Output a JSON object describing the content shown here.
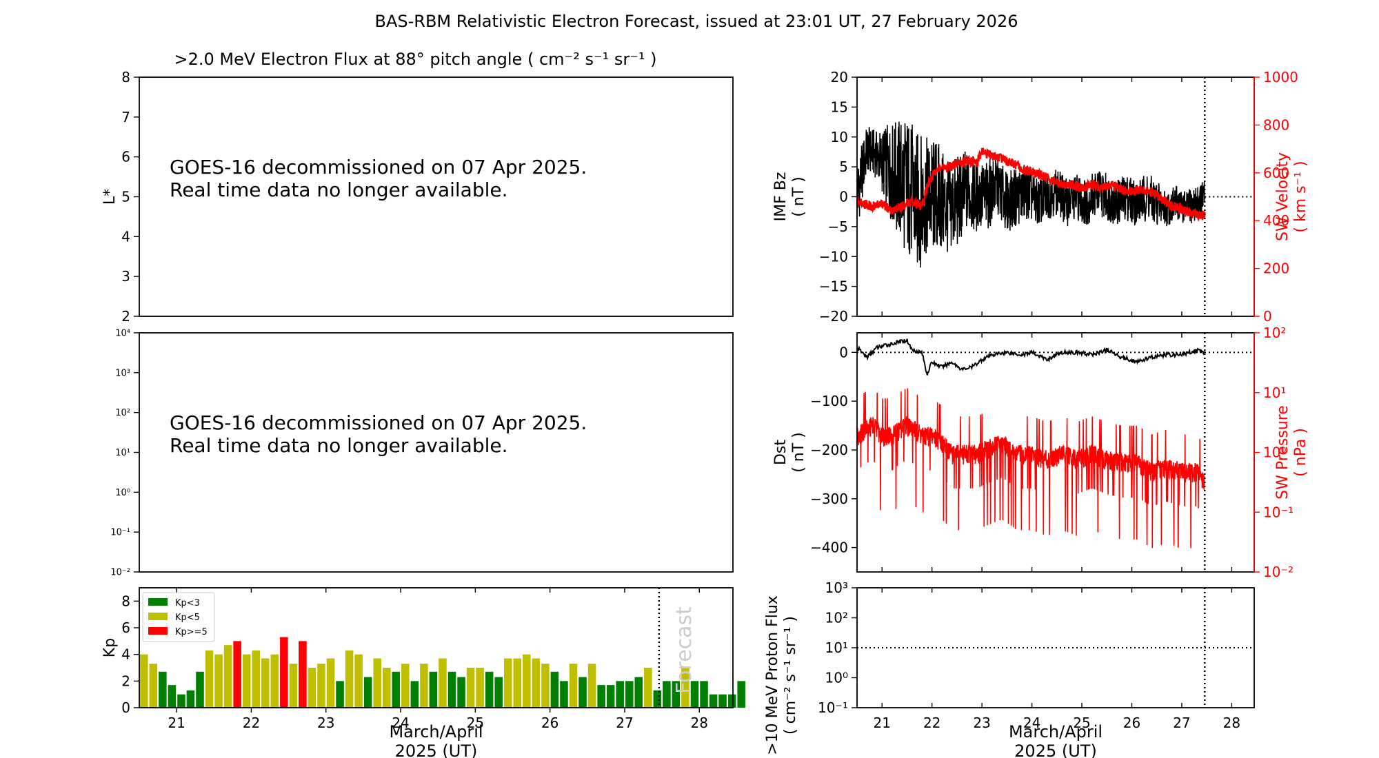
{
  "suptitle": "BAS-RBM Relativistic Electron Forecast, issued at 23:01 UT, 27 February 2026",
  "chart_data": [
    {
      "id": "flux_lstar",
      "type": "heatmap",
      "title": ">2.0 MeV Electron Flux at 88° pitch angle ( cm⁻² s⁻¹ sr⁻¹ )",
      "ylabel": "L*",
      "ylim": [
        2,
        8
      ],
      "yticks": [
        "2",
        "3",
        "4",
        "5",
        "6",
        "7",
        "8"
      ],
      "notice": [
        "GOES-16 decommissioned on 07 Apr 2025.",
        "Real time data no longer available."
      ]
    },
    {
      "id": "flux_goes",
      "type": "line",
      "yscale": "log",
      "yticks": [
        "10⁻²",
        "10⁻¹",
        "10⁰",
        "10¹",
        "10²",
        "10³",
        "10⁴"
      ],
      "notice": [
        "GOES-16 decommissioned on 07 Apr 2025.",
        "Real time data no longer available."
      ]
    },
    {
      "id": "kp",
      "type": "bar",
      "ylabel": "Kp",
      "ylim": [
        0,
        9
      ],
      "yticks": [
        "0",
        "2",
        "4",
        "6",
        "8"
      ],
      "xticks": [
        "21",
        "22",
        "23",
        "24",
        "25",
        "26",
        "27",
        "28"
      ],
      "xlabel": [
        "March/April",
        "2025 (UT)"
      ],
      "x_start": 20.5,
      "x_end": 28.45,
      "bin_days": 0.125,
      "forecast_x": 27.46,
      "forecast_label": "Forecast",
      "legend": [
        {
          "label": "Kp<3",
          "color": "#008000"
        },
        {
          "label": "Kp<5",
          "color": "#bfbf00"
        },
        {
          "label": "Kp>=5",
          "color": "#ff0000"
        }
      ],
      "values": [
        4.0,
        3.3,
        2.7,
        1.7,
        1.0,
        1.3,
        2.7,
        4.3,
        4.0,
        4.7,
        5.0,
        4.0,
        4.3,
        3.7,
        4.0,
        5.3,
        3.3,
        5.0,
        3.0,
        3.3,
        3.7,
        2.0,
        4.3,
        4.0,
        2.3,
        3.7,
        3.0,
        2.7,
        3.3,
        2.0,
        3.3,
        2.7,
        3.7,
        2.7,
        2.3,
        3.0,
        3.0,
        2.7,
        2.3,
        3.7,
        3.7,
        4.0,
        3.7,
        3.3,
        2.7,
        2.0,
        3.3,
        2.3,
        3.3,
        1.7,
        1.7,
        2.0,
        2.0,
        2.3,
        3.0,
        1.3,
        2.0,
        2.0,
        3.0,
        2.0,
        2.0,
        1.0,
        1.0,
        1.0,
        2.0
      ]
    },
    {
      "id": "imf_sw",
      "type": "line",
      "ylabel": [
        "IMF Bz",
        "( nT )"
      ],
      "ylim": [
        -20,
        20
      ],
      "yticks": [
        "−20",
        "−15",
        "−10",
        "−5",
        "0",
        "5",
        "10",
        "15",
        "20"
      ],
      "y2label": [
        "SW Velocity",
        "( km s⁻¹ )"
      ],
      "y2lim": [
        0,
        1000
      ],
      "y2ticks": [
        "0",
        "200",
        "400",
        "600",
        "800",
        "1000"
      ],
      "xlim": [
        20.5,
        28.45
      ],
      "now_x": 27.46,
      "series": [
        {
          "name": "IMF Bz",
          "color": "#000000",
          "x": [
            20.5,
            20.7,
            20.9,
            21.1,
            21.3,
            21.5,
            21.7,
            21.9,
            22.1,
            22.3,
            22.5,
            22.7,
            22.9,
            23.1,
            23.3,
            23.5,
            23.7,
            23.9,
            24.1,
            24.3,
            24.5,
            24.7,
            24.9,
            25.1,
            25.3,
            25.5,
            25.7,
            25.9,
            26.1,
            26.3,
            26.5,
            26.7,
            26.9,
            27.1,
            27.3,
            27.46
          ],
          "values": [
            0,
            8,
            7,
            5,
            3,
            2,
            -1,
            0,
            0,
            -2,
            -1,
            1,
            0,
            0,
            2,
            -1,
            0,
            1,
            -1,
            0,
            1,
            -1,
            0,
            -1,
            1,
            0,
            -1,
            0,
            -1,
            0,
            -1,
            -2,
            -1,
            -2,
            -1,
            0
          ],
          "spread": [
            6,
            4,
            4,
            7,
            10,
            12,
            12,
            10,
            10,
            8,
            8,
            7,
            6,
            6,
            5,
            5,
            5,
            5,
            4,
            4,
            4,
            4,
            4,
            4,
            4,
            4,
            4,
            4,
            4,
            4,
            4,
            3,
            3,
            3,
            3,
            3
          ]
        },
        {
          "name": "SW Velocity",
          "color": "#ff0000",
          "axis": "right",
          "x": [
            20.5,
            20.8,
            21.0,
            21.2,
            21.4,
            21.6,
            21.8,
            21.9,
            22.1,
            22.3,
            22.5,
            22.7,
            22.9,
            23.0,
            23.2,
            23.4,
            23.6,
            23.8,
            24.0,
            24.2,
            24.4,
            24.6,
            24.8,
            25.0,
            25.2,
            25.4,
            25.6,
            25.8,
            26.0,
            26.2,
            26.4,
            26.6,
            26.8,
            27.0,
            27.2,
            27.46
          ],
          "values": [
            480,
            460,
            470,
            440,
            460,
            480,
            460,
            540,
            620,
            620,
            640,
            650,
            640,
            690,
            670,
            660,
            640,
            620,
            600,
            590,
            570,
            550,
            550,
            540,
            550,
            540,
            550,
            530,
            520,
            530,
            520,
            490,
            460,
            450,
            430,
            420
          ]
        }
      ]
    },
    {
      "id": "dst_pressure",
      "type": "line",
      "ylabel": [
        "Dst",
        "( nT )"
      ],
      "ylim": [
        -450,
        40
      ],
      "yticks": [
        "−400",
        "−300",
        "−200",
        "−100",
        "0"
      ],
      "y2label": [
        "SW Pressure",
        "( nPa )"
      ],
      "y2scale": "log",
      "y2lim": [
        0.01,
        100
      ],
      "y2ticks": [
        "10⁻²",
        "10⁻¹",
        "10⁰",
        "10¹",
        "10²"
      ],
      "xlim": [
        20.5,
        28.45
      ],
      "now_x": 27.46,
      "series": [
        {
          "name": "Dst",
          "color": "#000000",
          "x": [
            20.5,
            20.7,
            20.9,
            21.1,
            21.3,
            21.5,
            21.6,
            21.8,
            21.9,
            22.0,
            22.2,
            22.4,
            22.6,
            22.8,
            23.0,
            23.2,
            23.5,
            23.8,
            24.0,
            24.3,
            24.6,
            24.9,
            25.2,
            25.5,
            25.8,
            26.1,
            26.4,
            26.7,
            27.0,
            27.3,
            27.46
          ],
          "values": [
            10,
            -10,
            10,
            15,
            20,
            25,
            5,
            0,
            -45,
            -20,
            -30,
            -20,
            -35,
            -30,
            -15,
            -5,
            0,
            -5,
            0,
            -15,
            0,
            0,
            -5,
            5,
            -10,
            -20,
            -10,
            -5,
            -5,
            5,
            0
          ]
        },
        {
          "name": "SW Pressure",
          "color": "#ff0000",
          "axis": "right",
          "x": [
            20.5,
            20.8,
            21.0,
            21.2,
            21.5,
            21.8,
            22.0,
            22.2,
            22.4,
            22.6,
            22.9,
            23.1,
            23.4,
            23.7,
            24.0,
            24.3,
            24.6,
            24.9,
            25.2,
            25.5,
            25.8,
            26.1,
            26.4,
            26.7,
            27.0,
            27.3,
            27.46
          ],
          "values": [
            2.0,
            3.0,
            2.0,
            2.0,
            3.0,
            2.0,
            2.0,
            1.5,
            1.0,
            1.0,
            1.0,
            1.2,
            1.5,
            1.0,
            1.0,
            0.8,
            1.0,
            0.8,
            1.0,
            0.8,
            0.7,
            0.7,
            0.5,
            0.6,
            0.5,
            0.5,
            0.3
          ]
        }
      ]
    },
    {
      "id": "proton_flux",
      "type": "line",
      "ylabel": [
        ">10 MeV Proton Flux",
        "( cm⁻² s⁻¹ sr⁻¹ )"
      ],
      "yscale": "log",
      "ylim": [
        0.1,
        1000
      ],
      "yticks": [
        "10⁻¹",
        "10⁰",
        "10¹",
        "10²",
        "10³"
      ],
      "threshold": 10,
      "xticks": [
        "21",
        "22",
        "23",
        "24",
        "25",
        "26",
        "27",
        "28"
      ],
      "xlabel": [
        "March/April",
        "2025 (UT)"
      ],
      "now_x": 27.46
    }
  ]
}
